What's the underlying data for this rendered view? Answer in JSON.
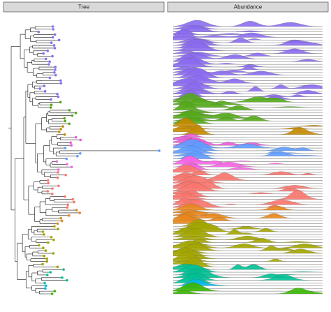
{
  "panels": [
    {
      "title": "Tree"
    },
    {
      "title": "Abundance"
    }
  ],
  "groups": [
    {
      "color": "#8b6cf0",
      "tips": 28
    },
    {
      "color": "#53a81a",
      "tips": 9
    },
    {
      "color": "#c48a00",
      "tips": 4
    },
    {
      "color": "#e85bd8",
      "tips": 4
    },
    {
      "color": "#619cff",
      "tips": 5
    },
    {
      "color": "#f564e3",
      "tips": 4
    },
    {
      "color": "#f8766d",
      "tips": 14
    },
    {
      "color": "#e7861b",
      "tips": 6
    },
    {
      "color": "#a3a500",
      "tips": 16
    },
    {
      "color": "#00c094",
      "tips": 6
    },
    {
      "color": "#00b6eb",
      "tips": 2
    },
    {
      "color": "#39b600",
      "tips": 2
    }
  ]
}
